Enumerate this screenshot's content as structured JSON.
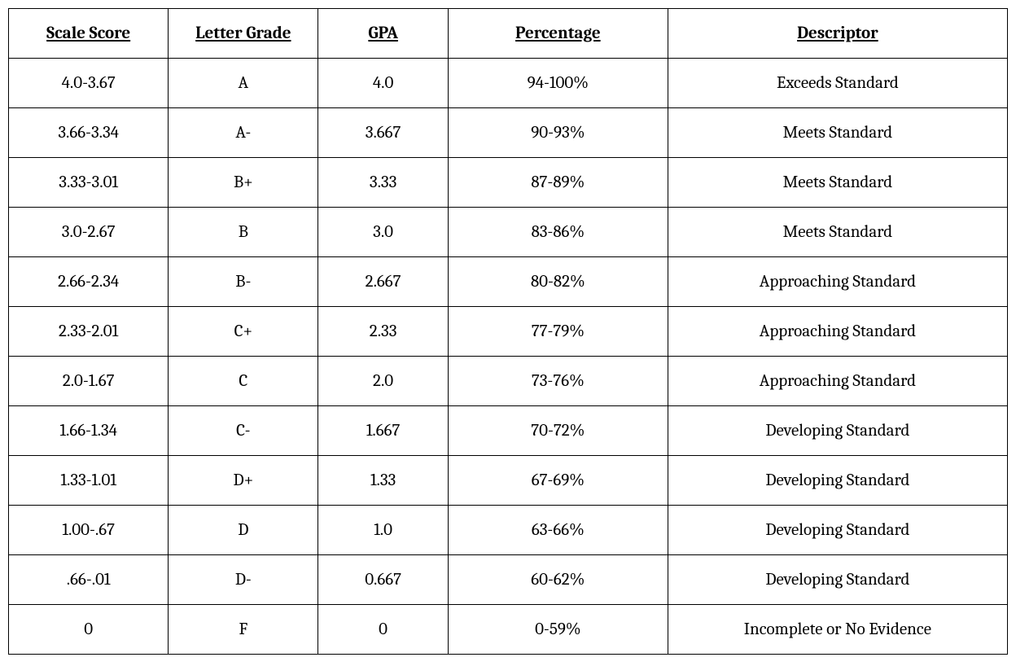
{
  "table": {
    "type": "table",
    "background_color": "#ffffff",
    "border_color": "#000000",
    "text_color": "#000000",
    "header_fontsize": 21,
    "cell_fontsize": 21,
    "font_family": "Cambria, Georgia, serif",
    "columns": [
      {
        "label": "Scale Score",
        "width": "16%"
      },
      {
        "label": "Letter Grade",
        "width": "15%"
      },
      {
        "label": "GPA",
        "width": "13%"
      },
      {
        "label": "Percentage",
        "width": "22%"
      },
      {
        "label": "Descriptor",
        "width": "34%"
      }
    ],
    "rows": [
      [
        "4.0-3.67",
        "A",
        "4.0",
        "94-100%",
        "Exceeds Standard"
      ],
      [
        "3.66-3.34",
        "A-",
        "3.667",
        "90-93%",
        "Meets Standard"
      ],
      [
        "3.33-3.01",
        "B+",
        "3.33",
        "87-89%",
        "Meets Standard"
      ],
      [
        "3.0-2.67",
        "B",
        "3.0",
        "83-86%",
        "Meets Standard"
      ],
      [
        "2.66-2.34",
        "B-",
        "2.667",
        "80-82%",
        "Approaching Standard"
      ],
      [
        "2.33-2.01",
        "C+",
        "2.33",
        "77-79%",
        "Approaching Standard"
      ],
      [
        "2.0-1.67",
        "C",
        "2.0",
        "73-76%",
        "Approaching Standard"
      ],
      [
        "1.66-1.34",
        "C-",
        "1.667",
        "70-72%",
        "Developing Standard"
      ],
      [
        "1.33-1.01",
        "D+",
        "1.33",
        "67-69%",
        "Developing Standard"
      ],
      [
        "1.00-.67",
        "D",
        "1.0",
        "63-66%",
        "Developing Standard"
      ],
      [
        ".66-.01",
        "D-",
        "0.667",
        "60-62%",
        "Developing Standard"
      ],
      [
        "0",
        "F",
        "0",
        "0-59%",
        "Incomplete or No Evidence"
      ]
    ]
  }
}
